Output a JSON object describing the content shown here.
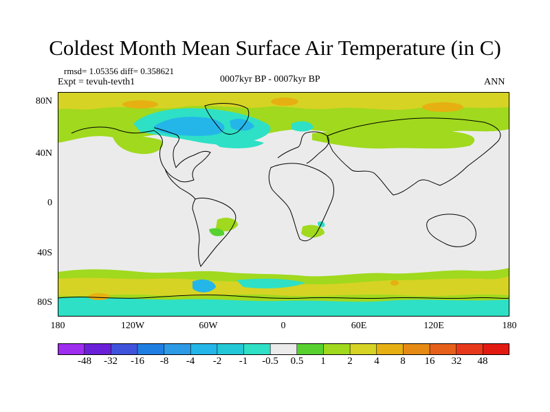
{
  "title": "Coldest Month Mean Surface Air Temperature (in C)",
  "stats": "rmsd= 1.05356  diff= 0.358621",
  "expt": "Expt = tevuh-tevth1",
  "period": "0007kyr BP - 0007kyr BP",
  "season": "ANN",
  "lat_labels": [
    "80N",
    "40N",
    "0",
    "40S",
    "80S"
  ],
  "lon_labels": [
    "180",
    "120W",
    "60W",
    "0",
    "60E",
    "120E",
    "180"
  ],
  "colorbar": {
    "labels": [
      "-48",
      "-32",
      "-16",
      "-8",
      "-4",
      "-2",
      "-1",
      "-0.5",
      "0.5",
      "1",
      "2",
      "4",
      "8",
      "16",
      "32",
      "48"
    ],
    "colors": [
      "#9f2df0",
      "#6a1fd8",
      "#3f52dc",
      "#1f7ee2",
      "#2d9ae6",
      "#24b6e8",
      "#22c8d6",
      "#2ee0c6",
      "#ebebeb",
      "#57d12f",
      "#a0d91e",
      "#d6d324",
      "#e6b012",
      "#e68a14",
      "#e6601a",
      "#e8381c",
      "#e21a12"
    ]
  },
  "colors": {
    "land_neutral": "#ebebeb",
    "warm_light": "#a0d91e",
    "warm_mid": "#d6d324",
    "warm_high": "#e6b012",
    "cool_light": "#2ee0c6",
    "cool_mid": "#24b6e8",
    "neutral_green": "#57d12f"
  }
}
